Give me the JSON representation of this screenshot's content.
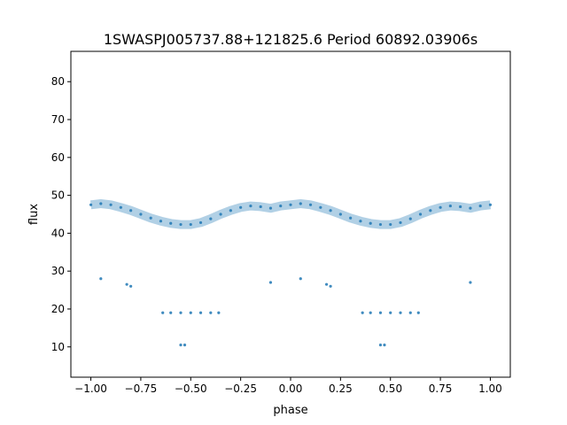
{
  "chart_data": {
    "type": "scatter",
    "title": "1SWASPJ005737.88+121825.6 Period 60892.03906s",
    "xlabel": "phase",
    "ylabel": "flux",
    "xlim": [
      -1.1,
      1.1
    ],
    "ylim": [
      2,
      88
    ],
    "xticks": [
      -1.0,
      -0.75,
      -0.5,
      -0.25,
      0.0,
      0.25,
      0.5,
      0.75,
      1.0
    ],
    "xtick_labels": [
      "−1.00",
      "−0.75",
      "−0.50",
      "−0.25",
      "0.00",
      "0.25",
      "0.50",
      "0.75",
      "1.00"
    ],
    "yticks": [
      10,
      20,
      30,
      40,
      50,
      60,
      70,
      80
    ],
    "ytick_labels": [
      "10",
      "20",
      "30",
      "40",
      "50",
      "60",
      "70",
      "80"
    ],
    "grid": false,
    "point_color": "#1f77b4",
    "series": [
      {
        "x": [
          -1.0,
          -0.95,
          -0.9,
          -0.85,
          -0.8,
          -0.75,
          -0.7,
          -0.65,
          -0.6,
          -0.55,
          -0.5,
          -0.45,
          -0.4,
          -0.35,
          -0.3,
          -0.25,
          -0.2,
          -0.15,
          -0.1,
          -0.05,
          0.0,
          0.05,
          0.1,
          0.15,
          0.2,
          0.25,
          0.3,
          0.35,
          0.4,
          0.45,
          0.5,
          0.55,
          0.6,
          0.65,
          0.7,
          0.75,
          0.8,
          0.85,
          0.9,
          0.95,
          1.0
        ],
        "y": [
          47.5,
          47.8,
          47.5,
          46.8,
          46.0,
          45.0,
          44.0,
          43.2,
          42.6,
          42.3,
          42.3,
          42.8,
          43.8,
          45.0,
          46.0,
          46.8,
          47.2,
          47.0,
          46.6,
          47.2,
          47.5,
          47.8,
          47.5,
          46.8,
          46.0,
          45.0,
          44.0,
          43.2,
          42.6,
          42.3,
          42.3,
          42.8,
          43.8,
          45.0,
          46.0,
          46.8,
          47.2,
          47.0,
          46.6,
          47.2,
          47.5
        ]
      },
      {
        "x": [
          -0.64,
          -0.6,
          -0.55,
          -0.5,
          -0.45,
          -0.4,
          -0.36,
          0.36,
          0.4,
          0.45,
          0.5,
          0.55,
          0.6,
          0.64
        ],
        "y": [
          19.0,
          19.0,
          19.0,
          19.0,
          19.0,
          19.0,
          19.0,
          19.0,
          19.0,
          19.0,
          19.0,
          19.0,
          19.0,
          19.0
        ]
      },
      {
        "x": [
          -0.55,
          -0.53,
          0.45,
          0.47,
          -0.82,
          -0.8,
          0.18,
          0.2,
          -0.95,
          0.05,
          -0.1,
          0.9
        ],
        "y": [
          10.5,
          10.5,
          10.5,
          10.5,
          26.5,
          26.0,
          26.5,
          26.0,
          28.0,
          28.0,
          27.0,
          27.0
        ]
      }
    ]
  }
}
